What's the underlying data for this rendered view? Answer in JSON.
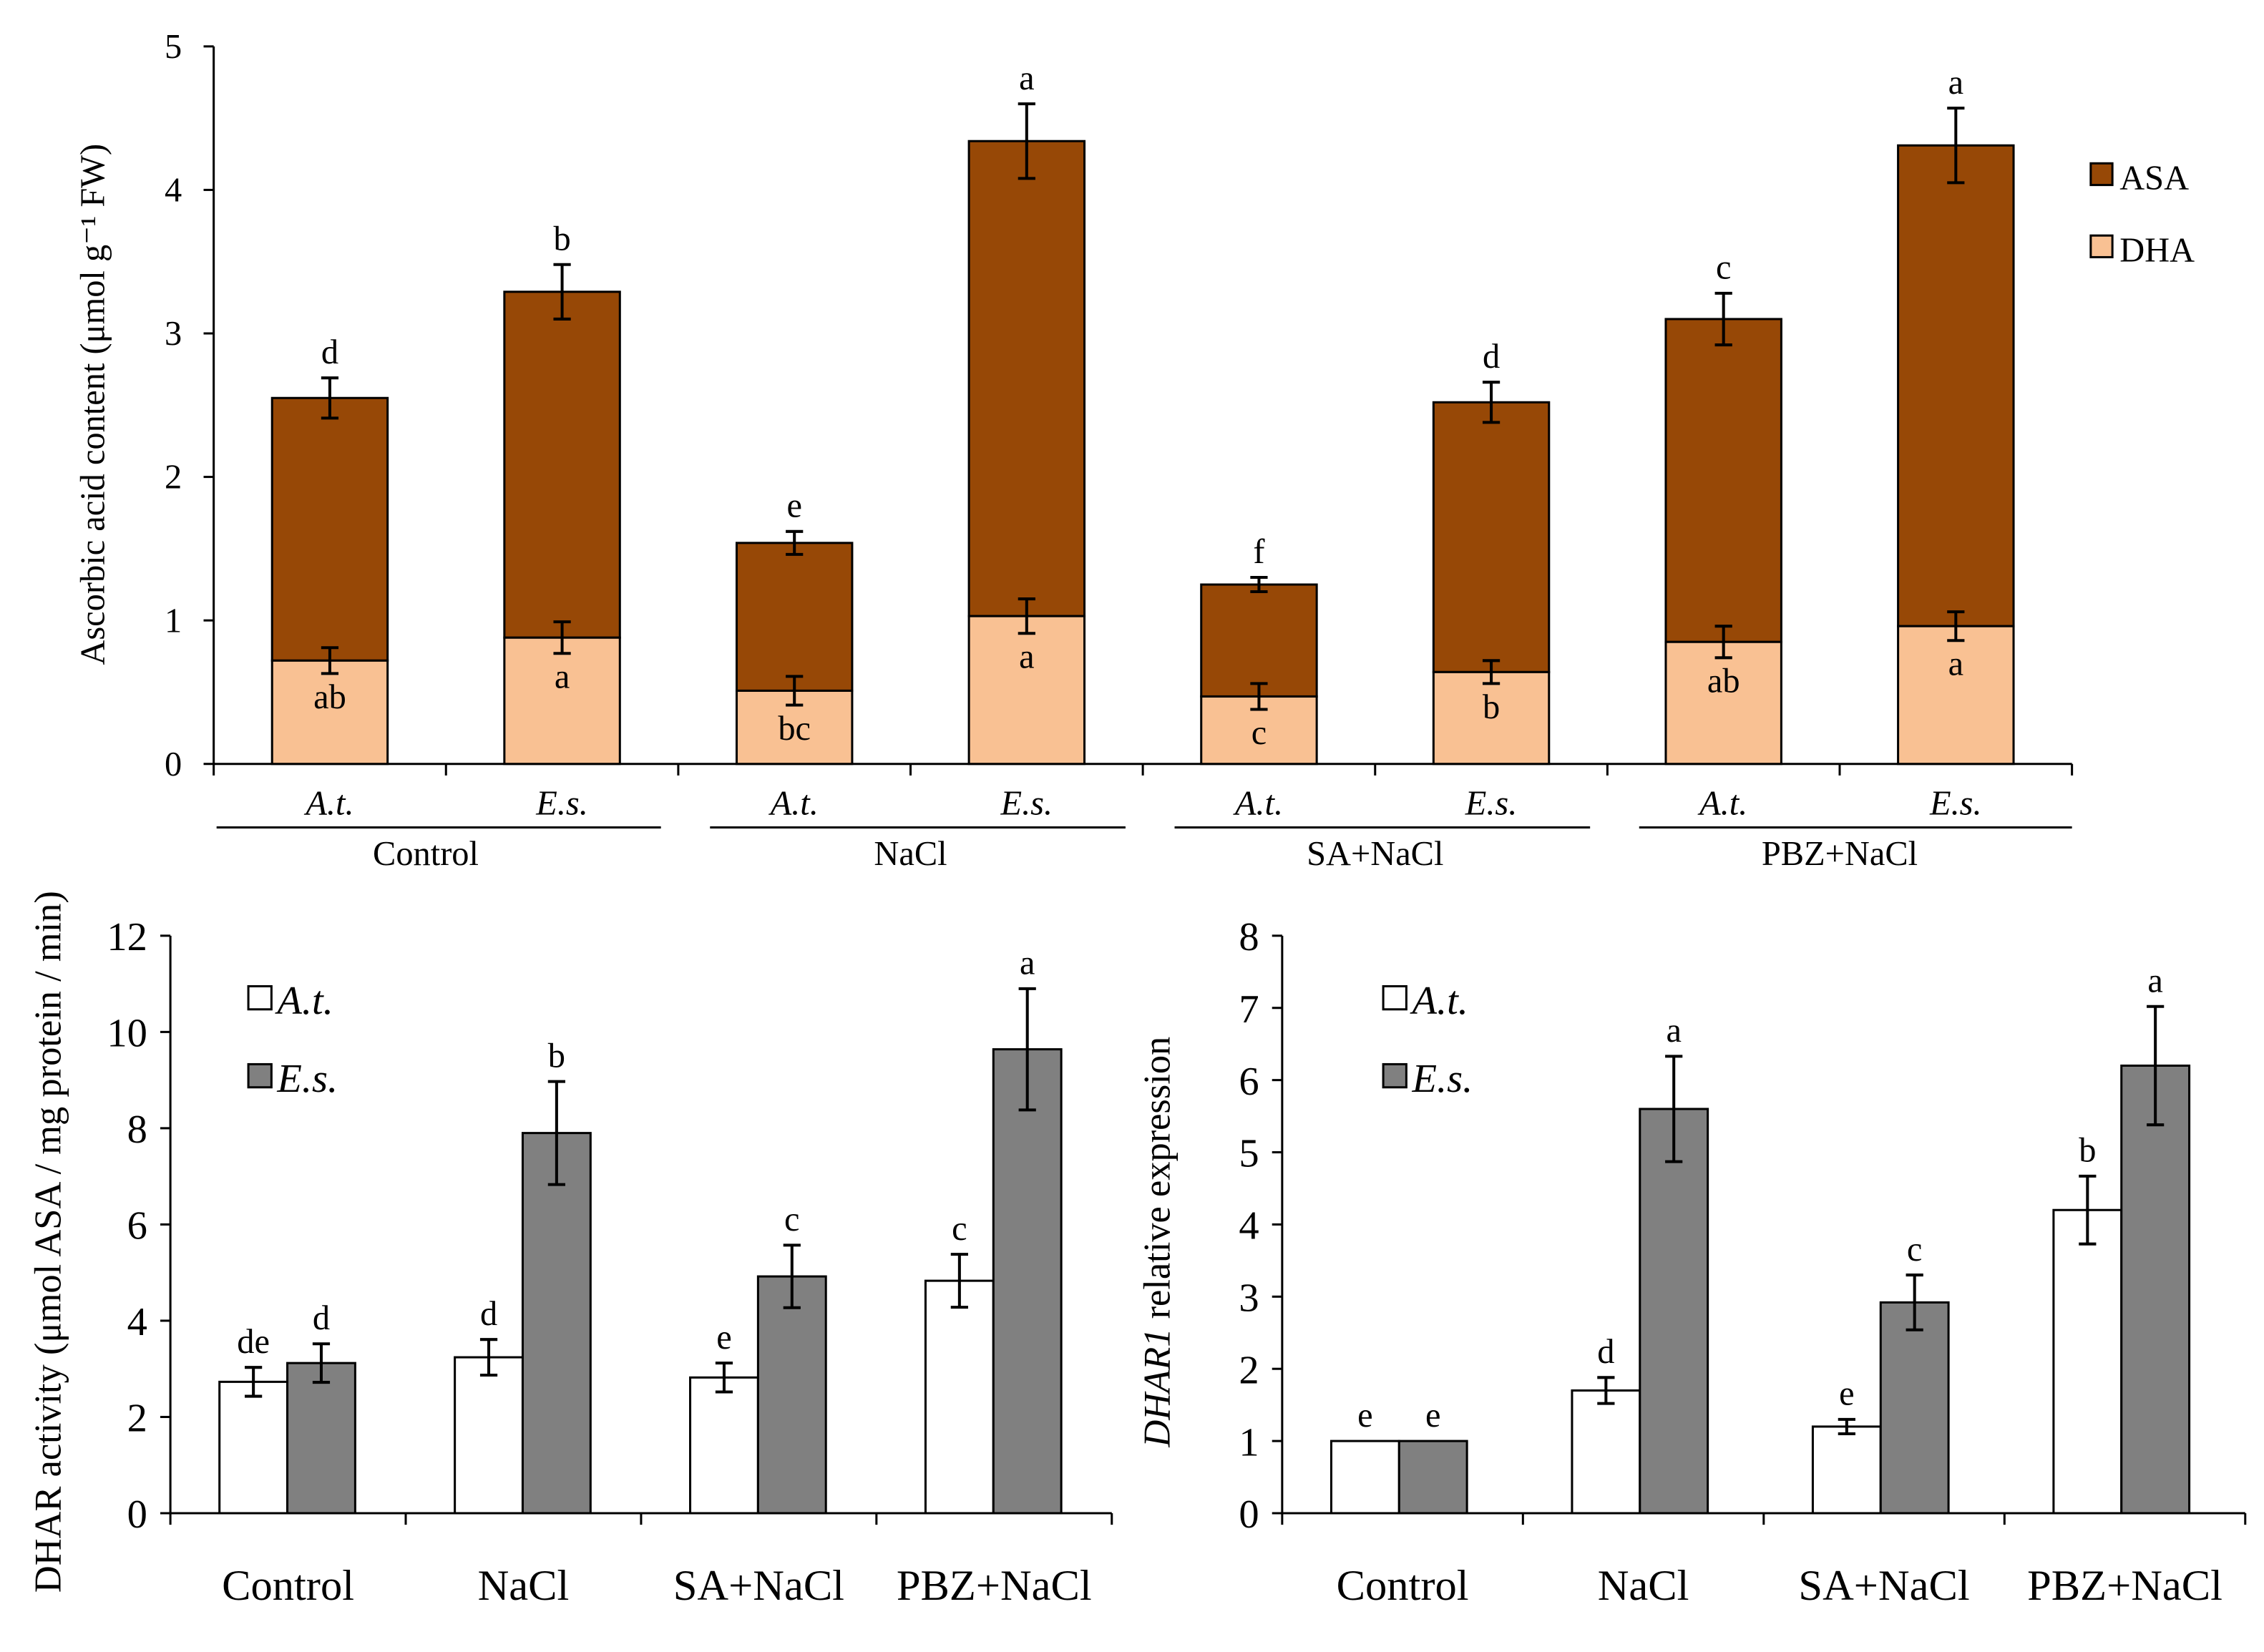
{
  "chart_data": [
    {
      "type": "bar",
      "stacked": true,
      "ylabel": "Ascorbic acid content (μmol g⁻¹ FW)",
      "ylim": [
        0,
        5
      ],
      "yticks": [
        "0",
        "1",
        "2",
        "3",
        "4",
        "5"
      ],
      "groups": [
        "Control",
        "NaCl",
        "SA+NaCl",
        "PBZ+NaCl"
      ],
      "categories": [
        "A.t.",
        "E.s.",
        "A.t.",
        "E.s.",
        "A.t.",
        "E.s.",
        "A.t.",
        "E.s."
      ],
      "legend": {
        "position": "top-right",
        "entries": [
          "ASA",
          "DHA"
        ]
      },
      "series": [
        {
          "name": "DHA",
          "color": "#F9C193",
          "values": [
            0.72,
            0.88,
            0.51,
            1.03,
            0.47,
            0.64,
            0.85,
            0.96
          ],
          "errors": [
            0.09,
            0.11,
            0.1,
            0.12,
            0.09,
            0.08,
            0.11,
            0.1
          ],
          "letters": [
            "ab",
            "a",
            "bc",
            "a",
            "c",
            "b",
            "ab",
            "a"
          ]
        },
        {
          "name": "ASA",
          "color": "#974806",
          "totals": [
            2.55,
            3.29,
            1.54,
            4.34,
            1.25,
            2.52,
            3.1,
            4.31
          ],
          "errors": [
            0.14,
            0.19,
            0.08,
            0.26,
            0.05,
            0.14,
            0.18,
            0.26
          ],
          "letters": [
            "d",
            "b",
            "e",
            "a",
            "f",
            "d",
            "c",
            "a"
          ]
        }
      ]
    },
    {
      "type": "bar",
      "ylabel": "DHAR activity (μmol ASA / mg protein / min)",
      "ylim": [
        0,
        12
      ],
      "yticks": [
        "0",
        "2",
        "4",
        "6",
        "8",
        "10",
        "12"
      ],
      "categories": [
        "Control",
        "NaCl",
        "SA+NaCl",
        "PBZ+NaCl"
      ],
      "legend": {
        "position": "top-left",
        "entries": [
          "A.t.",
          "E.s."
        ]
      },
      "series": [
        {
          "name": "A.t.",
          "color": "#FFFFFF",
          "values": [
            2.73,
            3.24,
            2.82,
            4.83
          ],
          "errors": [
            0.3,
            0.37,
            0.3,
            0.55
          ],
          "letters": [
            "de",
            "d",
            "e",
            "c"
          ]
        },
        {
          "name": "E.s.",
          "color": "#808080",
          "values": [
            3.12,
            7.9,
            4.92,
            9.64
          ],
          "errors": [
            0.4,
            1.07,
            0.65,
            1.26
          ],
          "letters": [
            "d",
            "b",
            "c",
            "a"
          ]
        }
      ]
    },
    {
      "type": "bar",
      "ylabel_italic": "DHAR1",
      "ylabel": " relative expression",
      "ylim": [
        0,
        8
      ],
      "yticks": [
        "0",
        "1",
        "2",
        "3",
        "4",
        "5",
        "6",
        "7",
        "8"
      ],
      "categories": [
        "Control",
        "NaCl",
        "SA+NaCl",
        "PBZ+NaCl"
      ],
      "legend": {
        "position": "top-left",
        "entries": [
          "A.t.",
          "E.s."
        ]
      },
      "series": [
        {
          "name": "A.t.",
          "color": "#FFFFFF",
          "values": [
            1.0,
            1.7,
            1.2,
            4.2
          ],
          "errors": [
            0,
            0.18,
            0.1,
            0.47
          ],
          "letters": [
            "e",
            "d",
            "e",
            "b"
          ]
        },
        {
          "name": "E.s.",
          "color": "#808080",
          "values": [
            1.0,
            5.6,
            2.92,
            6.2
          ],
          "errors": [
            0,
            0.73,
            0.38,
            0.82
          ],
          "letters": [
            "e",
            "a",
            "c",
            "a"
          ]
        }
      ]
    }
  ]
}
